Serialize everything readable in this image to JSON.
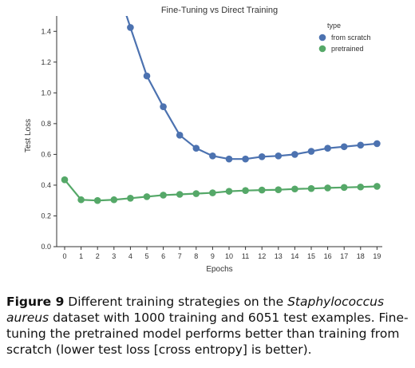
{
  "chart_data": {
    "type": "line",
    "title": "Fine-Tuning vs Direct Training",
    "xlabel": "Epochs",
    "ylabel": "Test Loss",
    "x": [
      0,
      1,
      2,
      3,
      4,
      5,
      6,
      7,
      8,
      9,
      10,
      11,
      12,
      13,
      14,
      15,
      16,
      17,
      18,
      19
    ],
    "xtick_labels": [
      "0",
      "1",
      "2",
      "3",
      "4",
      "5",
      "6",
      "7",
      "8",
      "9",
      "10",
      "11",
      "12",
      "13",
      "14",
      "15",
      "16",
      "17",
      "18",
      "19"
    ],
    "ylim": [
      0.0,
      1.5
    ],
    "yticks": [
      0.0,
      0.2,
      0.4,
      0.6,
      0.8,
      1.0,
      1.2,
      1.4
    ],
    "ytick_labels": [
      "0.0",
      "0.2",
      "0.4",
      "0.6",
      "0.8",
      "1.0",
      "1.2",
      "1.4"
    ],
    "grid": false,
    "legend": {
      "title": "type",
      "placement": "top-right"
    },
    "series": [
      {
        "name": "from scratch",
        "color": "#4c72b0",
        "values": [
          null,
          null,
          null,
          1.75,
          1.425,
          1.11,
          0.91,
          0.725,
          0.64,
          0.59,
          0.57,
          0.57,
          0.585,
          0.59,
          0.6,
          0.62,
          0.64,
          0.65,
          0.66,
          0.67
        ]
      },
      {
        "name": "pretrained",
        "color": "#55a868",
        "values": [
          0.435,
          0.305,
          0.3,
          0.305,
          0.315,
          0.325,
          0.335,
          0.34,
          0.345,
          0.35,
          0.36,
          0.365,
          0.368,
          0.37,
          0.375,
          0.378,
          0.382,
          0.385,
          0.388,
          0.392
        ]
      }
    ]
  },
  "caption": {
    "label": "Figure 9",
    "text_before": " Different training strategies on the ",
    "species": "Staphylococcus aureus",
    "text_after": " dataset with 1000 training and 6051 test examples. Fine-tuning the pretrained model performs better than training from scratch (lower test loss [cross entropy] is better)."
  }
}
